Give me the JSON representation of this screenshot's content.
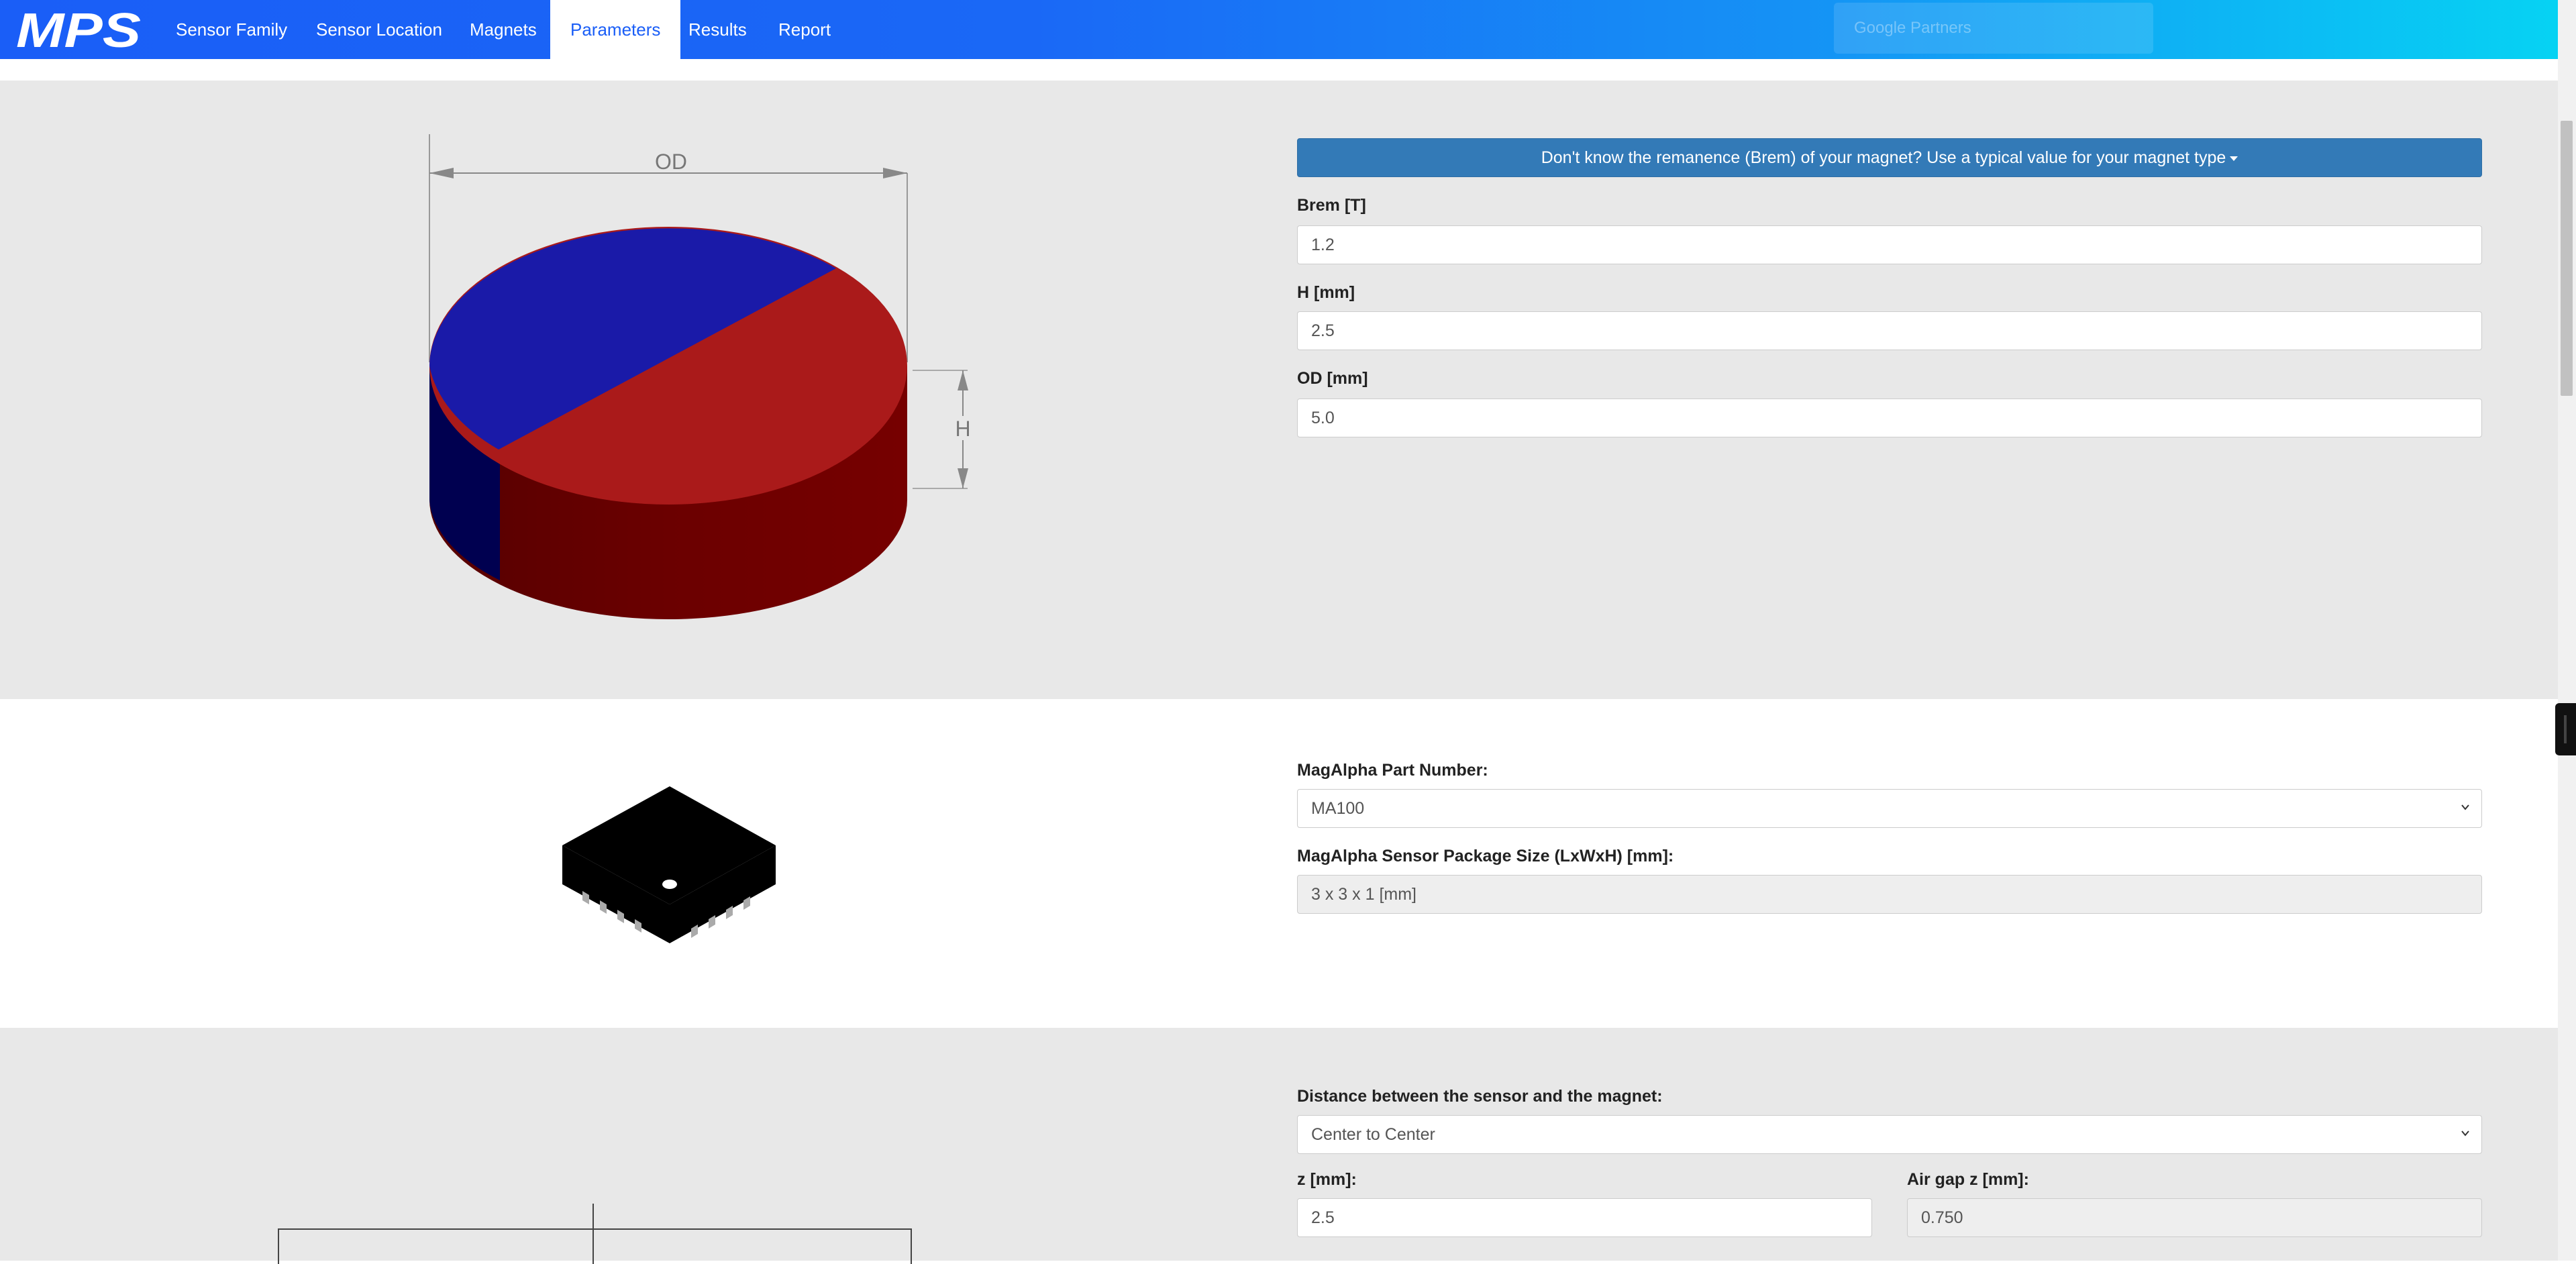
{
  "brand": {
    "logo_text": "MPS"
  },
  "nav": {
    "items": [
      {
        "label": "Sensor Family"
      },
      {
        "label": "Sensor Location"
      },
      {
        "label": "Magnets"
      },
      {
        "label": "Parameters"
      },
      {
        "label": "Results"
      },
      {
        "label": "Report"
      }
    ],
    "active": "Parameters",
    "search_placeholder": "Google Partners"
  },
  "magnet": {
    "diagram_labels": {
      "od": "OD",
      "h": "H"
    },
    "colors": {
      "north": "#1a1aa8",
      "south": "#aa1a1a"
    },
    "help_button": "Don't know the remanence (Brem) of your magnet? Use a typical value for your magnet type",
    "brem": {
      "label": "Brem [T]",
      "value": "1.2"
    },
    "h": {
      "label": "H [mm]",
      "value": "2.5"
    },
    "od": {
      "label": "OD [mm]",
      "value": "5.0"
    }
  },
  "sensor": {
    "part_label": "MagAlpha Part Number:",
    "part_value": "MA100",
    "package_label": "MagAlpha Sensor Package Size (LxWxH) [mm]:",
    "package_value": "3 x 3 x 1 [mm]"
  },
  "distance": {
    "label": "Distance between the sensor and the magnet:",
    "value": "Center to Center",
    "z": {
      "label": "z [mm]:",
      "value": "2.5"
    },
    "airgap": {
      "label": "Air gap z [mm]:",
      "value": "0.750"
    }
  },
  "theme": {
    "accent": "#1a5ef7",
    "button": "#337ab7"
  }
}
